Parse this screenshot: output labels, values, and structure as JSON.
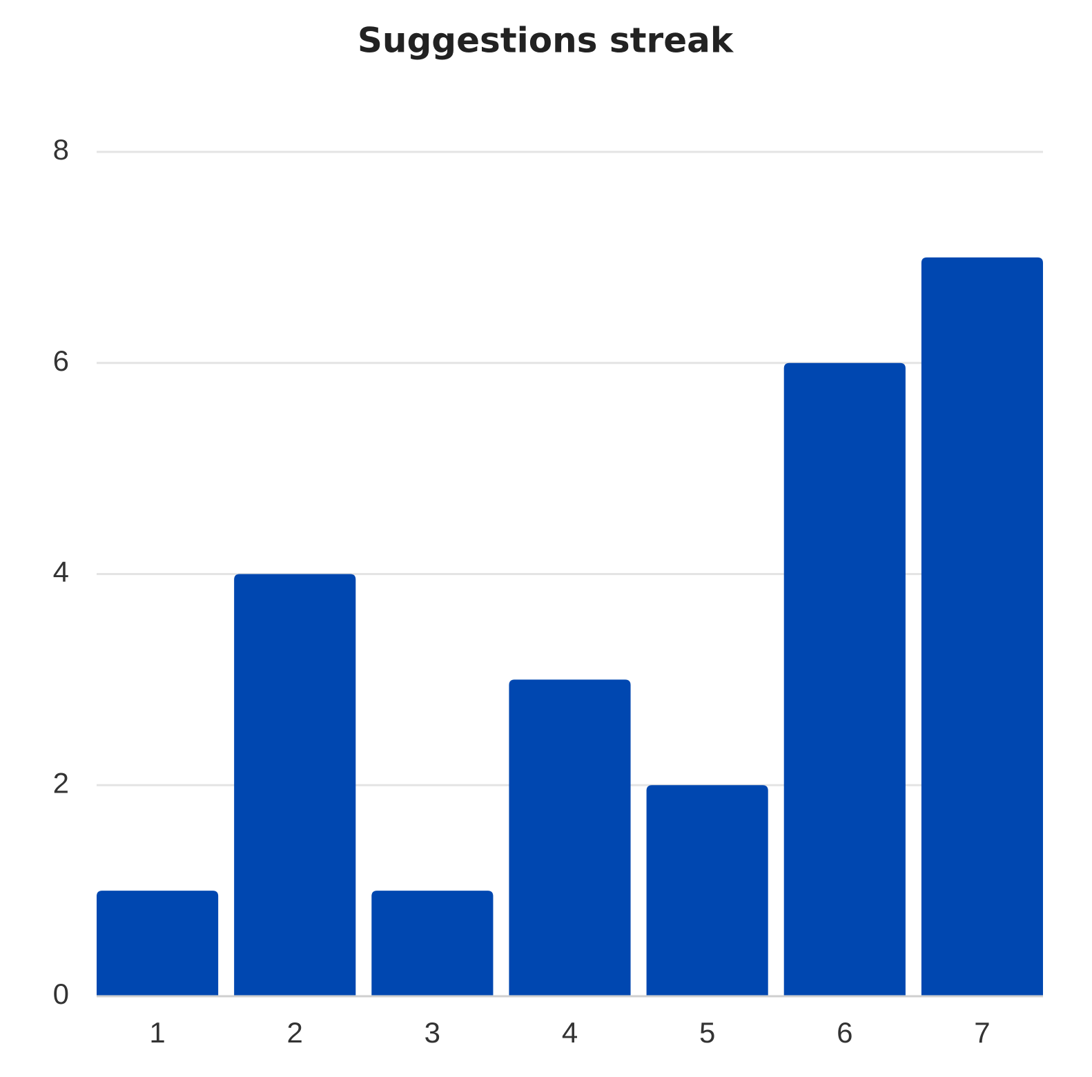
{
  "chart_data": {
    "type": "bar",
    "title": "Suggestions streak",
    "categories": [
      "1",
      "2",
      "3",
      "4",
      "5",
      "6",
      "7"
    ],
    "values": [
      1,
      4,
      1,
      3,
      2,
      6,
      7
    ],
    "color": "#0047b0",
    "ylim": [
      0,
      8
    ],
    "yticks": [
      0,
      2,
      4,
      6,
      8
    ],
    "grid": true
  }
}
